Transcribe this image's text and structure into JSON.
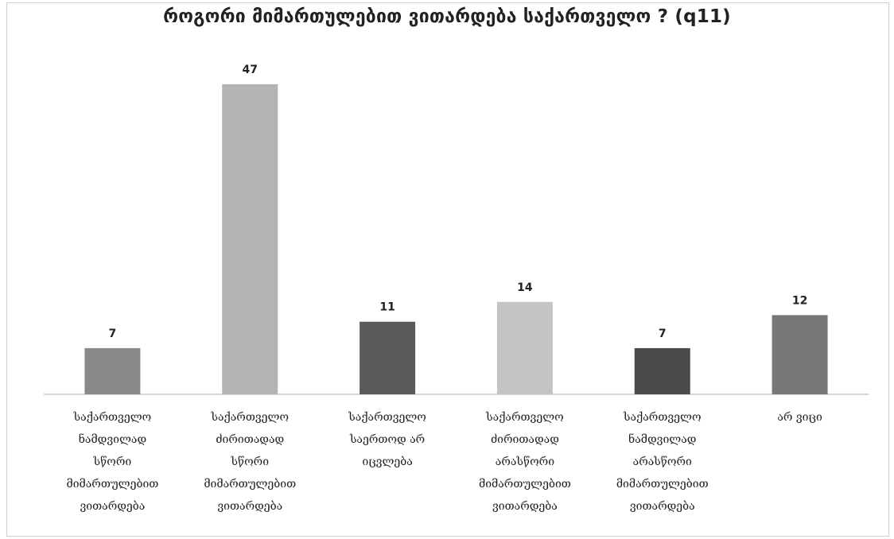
{
  "chart_data": {
    "type": "bar",
    "title": "როგორი მიმართულებით ვითარდება საქართველო ? (q11)",
    "categories": [
      [
        "საქართველო",
        "ნამდვილად",
        "სწორი",
        "მიმართულებით",
        "ვითარდება"
      ],
      [
        "საქართველო",
        "ძირითადად",
        "სწორი",
        "მიმართულებით",
        "ვითარდება"
      ],
      [
        "საქართველო",
        "საერთოდ არ",
        "იცვლება"
      ],
      [
        "საქართველო",
        "ძირითადად",
        "არასწორი",
        "მიმართულებით",
        "ვითარდება"
      ],
      [
        "საქართველო",
        "ნამდვილად",
        "არასწორი",
        "მიმართულებით",
        "ვითარდება"
      ],
      [
        "არ ვიცი"
      ]
    ],
    "values": [
      7,
      47,
      11,
      14,
      7,
      12
    ],
    "colors": [
      "#8a8a8a",
      "#b3b3b3",
      "#5a5a5a",
      "#c4c4c4",
      "#4a4a4a",
      "#777777"
    ],
    "ylim": [
      0,
      50
    ],
    "grid": false,
    "legend": "none"
  }
}
